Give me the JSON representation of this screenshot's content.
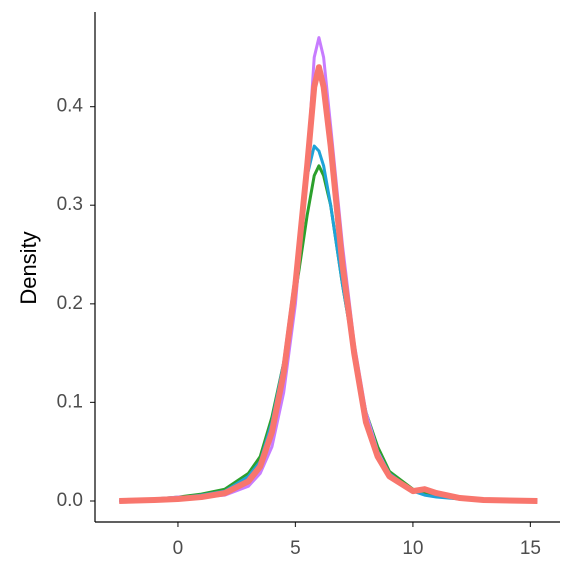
{
  "chart_data": {
    "type": "line",
    "y_label": "Density",
    "x": [
      -2.5,
      -1,
      0,
      1,
      2,
      3,
      3.5,
      4,
      4.5,
      5,
      5.5,
      5.8,
      6,
      6.2,
      6.5,
      7,
      7.5,
      8,
      8.5,
      9,
      10,
      10.5,
      11,
      12,
      13,
      15.3
    ],
    "series": [
      {
        "color": "#2ca02c",
        "values": [
          0,
          0.002,
          0.004,
          0.007,
          0.012,
          0.028,
          0.045,
          0.085,
          0.14,
          0.21,
          0.29,
          0.33,
          0.34,
          0.33,
          0.3,
          0.22,
          0.15,
          0.09,
          0.055,
          0.03,
          0.012,
          0.008,
          0.005,
          0.002,
          0.001,
          0
        ]
      },
      {
        "color": "#1fa3d8",
        "values": [
          0,
          0.001,
          0.003,
          0.006,
          0.01,
          0.025,
          0.04,
          0.08,
          0.14,
          0.23,
          0.33,
          0.36,
          0.355,
          0.34,
          0.3,
          0.22,
          0.15,
          0.09,
          0.05,
          0.028,
          0.01,
          0.006,
          0.004,
          0.002,
          0.001,
          0
        ]
      },
      {
        "color": "#c77cff",
        "values": [
          0,
          0.002,
          0.004,
          0.004,
          0.006,
          0.015,
          0.028,
          0.055,
          0.11,
          0.2,
          0.34,
          0.45,
          0.47,
          0.45,
          0.38,
          0.26,
          0.16,
          0.09,
          0.05,
          0.027,
          0.01,
          0.012,
          0.008,
          0.003,
          0.001,
          0
        ]
      },
      {
        "color": "#f8766d",
        "values": [
          0,
          0.001,
          0.002,
          0.004,
          0.008,
          0.02,
          0.035,
          0.07,
          0.13,
          0.22,
          0.34,
          0.42,
          0.44,
          0.42,
          0.36,
          0.24,
          0.15,
          0.08,
          0.045,
          0.025,
          0.01,
          0.012,
          0.008,
          0.003,
          0.001,
          0
        ]
      }
    ],
    "xlim": [
      -3.53,
      16.26
    ],
    "xticks": [
      0,
      5,
      10,
      15
    ],
    "ylim": [
      -0.0213,
      0.496
    ],
    "yticks": [
      {
        "value": 0,
        "label": "0.0"
      },
      0.1,
      0.2,
      0.3,
      0.4
    ],
    "grid": false
  }
}
